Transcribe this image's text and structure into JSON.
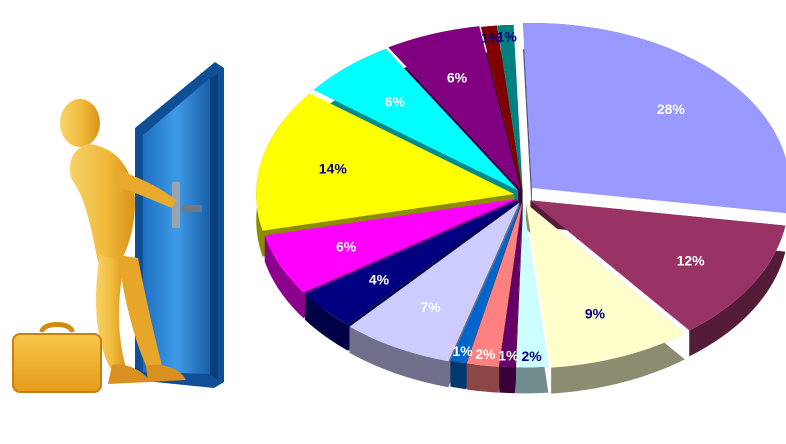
{
  "chart_data": {
    "type": "pie",
    "style": "3d-exploded",
    "title": "",
    "legend": "none",
    "slices": [
      {
        "value": 28,
        "label": "28%",
        "color": "#9999ff",
        "label_color": "#ffffff"
      },
      {
        "value": 12,
        "label": "12%",
        "color": "#993366",
        "label_color": "#ffffff"
      },
      {
        "value": 9,
        "label": "9%",
        "color": "#ffffcc",
        "label_color": "#000080"
      },
      {
        "value": 2,
        "label": "2%",
        "color": "#ccffff",
        "label_color": "#000080"
      },
      {
        "value": 1,
        "label": "1%",
        "color": "#660066",
        "label_color": "#ffffff"
      },
      {
        "value": 2,
        "label": "2%",
        "color": "#ff8080",
        "label_color": "#ffffff"
      },
      {
        "value": 1,
        "label": "1%",
        "color": "#0066cc",
        "label_color": "#ffffff"
      },
      {
        "value": 7,
        "label": "7%",
        "color": "#ccccff",
        "label_color": "#ffffff"
      },
      {
        "value": 4,
        "label": "4%",
        "color": "#000080",
        "label_color": "#ffffff"
      },
      {
        "value": 6,
        "label": "6%",
        "color": "#ff00ff",
        "label_color": "#ffffff"
      },
      {
        "value": 14,
        "label": "14%",
        "color": "#ffff00",
        "label_color": "#000080"
      },
      {
        "value": 6,
        "label": "6%",
        "color": "#00ffff",
        "label_color": "#ffffff"
      },
      {
        "value": 6,
        "label": "6%",
        "color": "#800080",
        "label_color": "#ffffff"
      },
      {
        "value": 1,
        "label": "1%",
        "color": "#800000",
        "label_color": "#000080"
      },
      {
        "value": 1,
        "label": "1%",
        "color": "#008080",
        "label_color": "#000080"
      }
    ]
  },
  "illustration": {
    "subject": "figure-opening-door",
    "icons": [
      "figure-icon",
      "door-icon",
      "briefcase-icon"
    ]
  }
}
